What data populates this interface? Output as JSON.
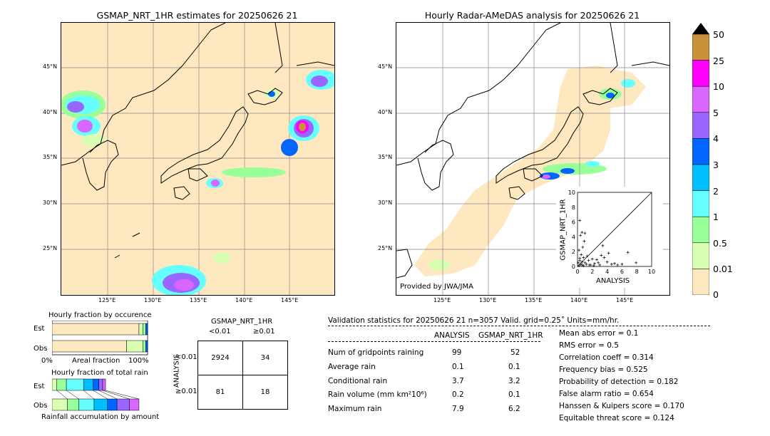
{
  "left_map": {
    "title": "GSMAP_NRT_1HR estimates for 20250626 21",
    "lat_labels": [
      "45°N",
      "40°N",
      "35°N",
      "30°N",
      "25°N"
    ],
    "lon_labels": [
      "125°E",
      "130°E",
      "135°E",
      "140°E",
      "145°E"
    ]
  },
  "right_map": {
    "title": "Hourly Radar-AMeDAS analysis for 20250626 21",
    "lat_labels": [
      "45°N",
      "40°N",
      "35°N",
      "30°N",
      "25°N"
    ],
    "lon_labels": [
      "125°E",
      "130°E",
      "135°E",
      "140°E",
      "145°E"
    ],
    "credit": "Provided by JWA/JMA"
  },
  "colorbar": {
    "labels": [
      "50",
      "25",
      "10",
      "5",
      "4",
      "3",
      "2",
      "1",
      "0.5",
      "0.01",
      "0"
    ],
    "colors": [
      "#c8913a",
      "#ff00ff",
      "#d966ff",
      "#9966ff",
      "#0066ff",
      "#00bfff",
      "#66ffff",
      "#99ff99",
      "#d9ffb3",
      "#fde8bf"
    ]
  },
  "scatter": {
    "xlabel": "ANALYSIS",
    "ylabel": "GSMAP_NRT_1HR",
    "ticks": [
      "0",
      "2",
      "4",
      "6",
      "8",
      "10"
    ]
  },
  "occurrence": {
    "title": "Hourly fraction by occurence",
    "rows": [
      "Est",
      "Obs"
    ],
    "axis_left": "0%",
    "axis_mid": "Areal fraction",
    "axis_right": "100%"
  },
  "total_rain": {
    "title": "Hourly fraction of total rain",
    "rows": [
      "Est",
      "Obs"
    ],
    "footer": "Rainfall accumulation by amount"
  },
  "contingency": {
    "col_title": "GSMAP_NRT_1HR",
    "col_labels": [
      "<0.01",
      "≥0.01"
    ],
    "row_title": "ANALYSIS",
    "row_labels": [
      "<0.01",
      "≥0.01"
    ],
    "cells": [
      "2924",
      "34",
      "81",
      "18"
    ]
  },
  "validation": {
    "header": "Validation statistics for 20250626 21  n=3057 Valid. grid=0.25˚ Units=mm/hr.",
    "col_analysis": "ANALYSIS",
    "col_gsmap": "GSMAP_NRT_1HR",
    "rows": [
      {
        "label": "Num of gridpoints raining",
        "analysis": "99",
        "gsmap": "52"
      },
      {
        "label": "Average rain",
        "analysis": "0.1",
        "gsmap": "0.1"
      },
      {
        "label": "Conditional rain",
        "analysis": "3.7",
        "gsmap": "3.2"
      },
      {
        "label": "Rain volume (mm km²10⁶)",
        "analysis": "0.2",
        "gsmap": "0.1"
      },
      {
        "label": "Maximum rain",
        "analysis": "7.9",
        "gsmap": "6.2"
      }
    ],
    "scores": [
      "Mean abs error =    0.1",
      "RMS error =    0.5",
      "Correlation coeff =  0.314",
      "Frequency bias =  0.525",
      "Probability of detection =  0.182",
      "False alarm ratio =  0.654",
      "Hanssen & Kuipers score =  0.170",
      "Equitable threat score =  0.124"
    ]
  },
  "chart_data": [
    {
      "type": "scatter",
      "title": "",
      "xlabel": "ANALYSIS",
      "ylabel": "GSMAP_NRT_1HR",
      "xlim": [
        0,
        10
      ],
      "ylim": [
        0,
        10
      ],
      "points": [
        [
          0.2,
          0.1
        ],
        [
          0.4,
          0.3
        ],
        [
          0.6,
          0.2
        ],
        [
          0.3,
          0.8
        ],
        [
          0.8,
          1.2
        ],
        [
          1.0,
          0.5
        ],
        [
          0.5,
          1.6
        ],
        [
          0.2,
          2.2
        ],
        [
          0.7,
          2.6
        ],
        [
          0.9,
          3.4
        ],
        [
          0.4,
          4.2
        ],
        [
          0.6,
          4.6
        ],
        [
          1.0,
          4.5
        ],
        [
          0.3,
          6.2
        ],
        [
          1.2,
          0.3
        ],
        [
          1.5,
          0.8
        ],
        [
          1.8,
          0.2
        ],
        [
          2.0,
          1.0
        ],
        [
          2.3,
          0.4
        ],
        [
          2.6,
          0.9
        ],
        [
          3.0,
          0.2
        ],
        [
          3.2,
          1.5
        ],
        [
          3.6,
          1.2
        ],
        [
          3.4,
          2.8
        ],
        [
          4.0,
          0.6
        ],
        [
          4.2,
          1.8
        ],
        [
          4.6,
          0.3
        ],
        [
          5.0,
          0.4
        ],
        [
          5.4,
          0.2
        ],
        [
          6.0,
          0.3
        ],
        [
          6.8,
          1.9
        ],
        [
          7.9,
          0.5
        ],
        [
          0.1,
          0.5
        ],
        [
          0.3,
          1.1
        ],
        [
          0.6,
          0.6
        ],
        [
          1.3,
          1.4
        ],
        [
          1.6,
          0.2
        ],
        [
          0.8,
          0.1
        ],
        [
          2.2,
          0.1
        ],
        [
          2.8,
          0.5
        ]
      ]
    },
    {
      "type": "bar",
      "title": "Hourly fraction by occurence",
      "categories": [
        "Est",
        "Obs"
      ],
      "series": [
        {
          "values": [
            0.91,
            0.78
          ]
        },
        {
          "values": [
            0.04,
            0.17
          ]
        },
        {
          "values": [
            0.03,
            0.03
          ]
        },
        {
          "values": [
            0.02,
            0.02
          ]
        }
      ],
      "xlabel": "Areal fraction"
    },
    {
      "type": "bar",
      "title": "Hourly fraction of total rain",
      "categories": [
        "Est",
        "Obs"
      ],
      "series": [
        {
          "values": [
            0.05,
            0.16
          ]
        },
        {
          "values": [
            0.1,
            0.12
          ]
        },
        {
          "values": [
            0.18,
            0.16
          ]
        },
        {
          "values": [
            0.1,
            0.14
          ]
        },
        {
          "values": [
            0.06,
            0.1
          ]
        },
        {
          "values": [
            0.04,
            0.13
          ]
        },
        {
          "values": [
            0.03,
            0.1
          ]
        }
      ],
      "xlabel": "Rainfall accumulation by amount"
    }
  ]
}
